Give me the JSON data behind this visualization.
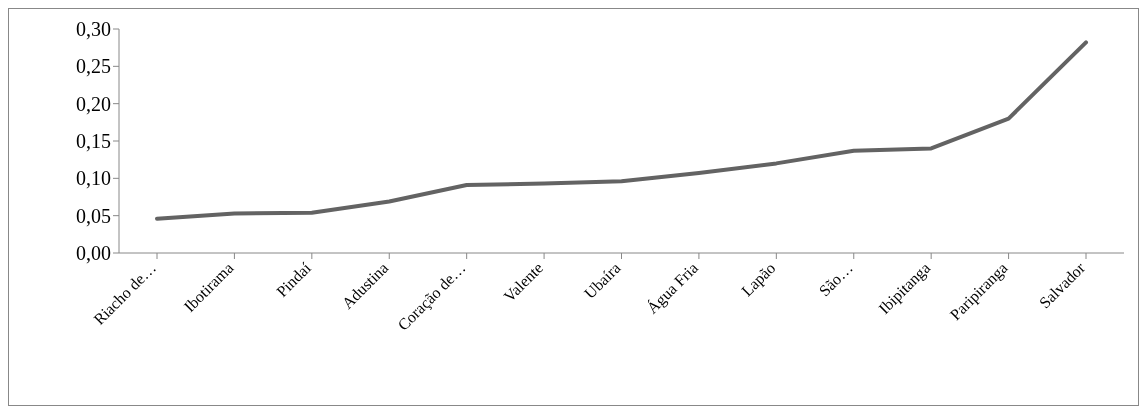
{
  "chart_data": {
    "type": "line",
    "categories": [
      "Riacho de…",
      "Ibotirama",
      "Pindaí",
      "Adustina",
      "Coração de…",
      "Valente",
      "Ubaíra",
      "Água Fria",
      "Lapão",
      "São…",
      "Ibipitanga",
      "Paripiranga",
      "Salvador"
    ],
    "series": [
      {
        "color": "#636363",
        "values": [
          0.046,
          0.053,
          0.054,
          0.069,
          0.091,
          0.093,
          0.096,
          0.107,
          0.12,
          0.137,
          0.14,
          0.18,
          0.282
        ]
      }
    ],
    "ylim": [
      0,
      0.3
    ],
    "yticks": [
      {
        "value": 0,
        "label": "0,00"
      },
      {
        "value": 0.05,
        "label": "0,05"
      },
      {
        "value": 0.1,
        "label": "0,10"
      },
      {
        "value": 0.15,
        "label": "0,15"
      },
      {
        "value": 0.2,
        "label": "0,20"
      },
      {
        "value": 0.25,
        "label": "0,25"
      },
      {
        "value": 0.3,
        "label": "0,30"
      }
    ],
    "grid": false,
    "legend": false,
    "marker": "none",
    "line_style": "solid"
  }
}
